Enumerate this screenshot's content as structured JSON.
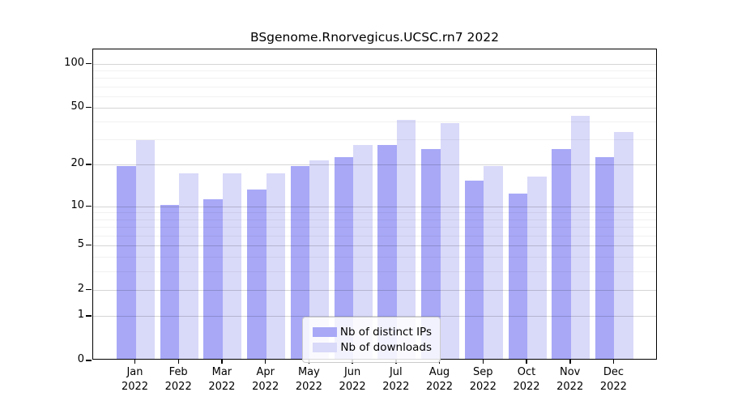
{
  "figure": {
    "background": "#ffffff"
  },
  "chart_data": {
    "type": "bar",
    "title": "BSgenome.Rnorvegicus.UCSC.rn7 2022",
    "categories": [
      "Jan 2022",
      "Feb 2022",
      "Mar 2022",
      "Apr 2022",
      "May 2022",
      "Jun 2022",
      "Jul 2022",
      "Aug 2022",
      "Sep 2022",
      "Oct 2022",
      "Nov 2022",
      "Dec 2022"
    ],
    "x_tick_months": [
      "Jan",
      "Feb",
      "Mar",
      "Apr",
      "May",
      "Jun",
      "Jul",
      "Aug",
      "Sep",
      "Oct",
      "Nov",
      "Dec"
    ],
    "x_tick_year": "2022",
    "series": [
      {
        "name": "Nb of distinct IPs",
        "color": "#a8a8f7",
        "values": [
          19,
          10,
          11,
          13,
          19,
          22,
          27,
          25,
          15,
          12,
          25,
          22
        ]
      },
      {
        "name": "Nb of downloads",
        "color": "#d9d9f9",
        "values": [
          29,
          17,
          17,
          17,
          21,
          27,
          40,
          38,
          19,
          16,
          43,
          33
        ]
      }
    ],
    "yscale": "log1p",
    "ylim": [
      0,
      130
    ],
    "y_tick_values": [
      100,
      50,
      20,
      10,
      5,
      2,
      1,
      0
    ],
    "y_tick_labels": [
      "100",
      "50",
      "20",
      "10",
      "5",
      "2",
      "1",
      "0"
    ],
    "y_minor_gridlines": [
      3,
      4,
      6,
      7,
      8,
      9,
      30,
      40,
      60,
      70,
      80,
      90
    ],
    "grid": "horizontal",
    "legend_position": "bottom-center",
    "axis_color": "#000000",
    "major_grid_color": "#d5d5d5",
    "minor_grid_color": "#f1f1f1"
  },
  "legend": {
    "items": [
      {
        "label": "Nb of distinct IPs"
      },
      {
        "label": "Nb of downloads"
      }
    ]
  }
}
